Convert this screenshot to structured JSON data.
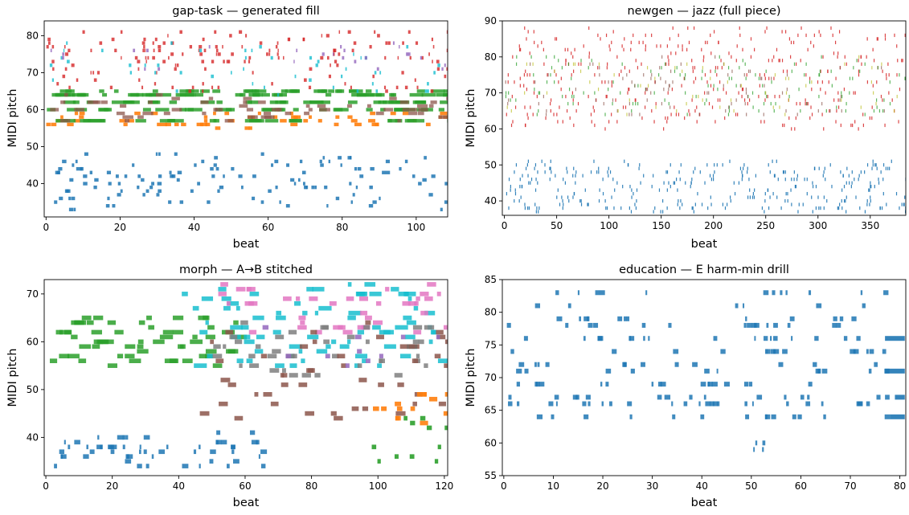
{
  "colors": {
    "blue": "#1f77b4",
    "orange": "#ff7f0e",
    "green": "#2ca02c",
    "red": "#d62728",
    "purple": "#9467bd",
    "brown": "#8c564b",
    "pink": "#e377c2",
    "gray": "#7f7f7f",
    "olive": "#bcbd22",
    "cyan": "#17becf"
  },
  "chart_data": [
    {
      "type": "scatter",
      "subtype": "piano-roll",
      "title": "gap-task — generated fill",
      "xlabel": "beat",
      "ylabel": "MIDI pitch",
      "xlim": [
        -0.5,
        108.5
      ],
      "ylim": [
        31,
        84
      ],
      "xticks": [
        0,
        20,
        40,
        60,
        80,
        100
      ],
      "yticks": [
        40,
        50,
        60,
        70,
        80
      ],
      "grid": false,
      "legend": "none",
      "seed": 11,
      "tracks": [
        {
          "color": "blue",
          "count": 130,
          "pitch_range": [
            33,
            48
          ],
          "dur": [
            0.5,
            1.2
          ],
          "opacity": 0.85
        },
        {
          "color": "orange",
          "count": 60,
          "pitch_range": [
            55,
            59
          ],
          "dur": [
            0.8,
            2.0
          ],
          "opacity": 0.9
        },
        {
          "color": "green",
          "count": 180,
          "pitch_range": [
            57,
            65
          ],
          "dur": [
            1.0,
            4.0
          ],
          "opacity": 0.85,
          "lanes": [
            57,
            60,
            62,
            64,
            65
          ]
        },
        {
          "color": "brown",
          "count": 60,
          "pitch_range": [
            57,
            64
          ],
          "dur": [
            1.0,
            3.0
          ],
          "opacity": 0.75
        },
        {
          "color": "red",
          "count": 160,
          "pitch_range": [
            65,
            81
          ],
          "dur": [
            0.3,
            0.9
          ],
          "opacity": 0.8
        },
        {
          "color": "cyan",
          "count": 50,
          "pitch_range": [
            64,
            78
          ],
          "dur": [
            0.3,
            0.8
          ],
          "opacity": 0.8
        },
        {
          "color": "purple",
          "count": 25,
          "pitch_range": [
            70,
            79
          ],
          "dur": [
            0.3,
            0.7
          ],
          "opacity": 0.8
        }
      ]
    },
    {
      "type": "scatter",
      "subtype": "piano-roll",
      "title": "newgen — jazz (full piece)",
      "xlabel": "beat",
      "ylabel": "MIDI pitch",
      "xlim": [
        -2,
        384
      ],
      "ylim": [
        36,
        90
      ],
      "xticks": [
        0,
        50,
        100,
        150,
        200,
        250,
        300,
        350
      ],
      "yticks": [
        40,
        50,
        60,
        70,
        80,
        90
      ],
      "grid": false,
      "legend": "none",
      "seed": 23,
      "tracks": [
        {
          "color": "blue",
          "count": 330,
          "pitch_range": [
            37,
            51
          ],
          "dur": [
            0.3,
            0.6
          ],
          "opacity": 0.9
        },
        {
          "color": "red",
          "count": 380,
          "pitch_range": [
            60,
            88
          ],
          "dur": [
            0.3,
            0.6
          ],
          "opacity": 0.85
        },
        {
          "color": "green",
          "count": 140,
          "pitch_range": [
            64,
            80
          ],
          "dur": [
            0.3,
            0.6
          ],
          "opacity": 0.75
        },
        {
          "color": "brown",
          "count": 90,
          "pitch_range": [
            64,
            80
          ],
          "dur": [
            0.3,
            0.6
          ],
          "opacity": 0.7
        },
        {
          "color": "olive",
          "count": 60,
          "pitch_range": [
            64,
            80
          ],
          "dur": [
            0.3,
            0.6
          ],
          "opacity": 0.7
        }
      ]
    },
    {
      "type": "scatter",
      "subtype": "piano-roll",
      "title": "morph — A→B stitched",
      "xlabel": "beat",
      "ylabel": "MIDI pitch",
      "xlim": [
        -0.5,
        121
      ],
      "ylim": [
        32,
        73
      ],
      "xticks": [
        0,
        20,
        40,
        60,
        80,
        100,
        120
      ],
      "yticks": [
        40,
        50,
        60,
        70
      ],
      "grid": false,
      "legend": "none",
      "seed": 37,
      "tracks": [
        {
          "color": "blue",
          "count": 55,
          "pitch_range": [
            34,
            41
          ],
          "dur": [
            0.5,
            2.0
          ],
          "opacity": 0.85,
          "xrange": [
            0,
            65
          ]
        },
        {
          "color": "green",
          "count": 60,
          "pitch_range": [
            55,
            65
          ],
          "dur": [
            1.5,
            4.0
          ],
          "opacity": 0.85,
          "xrange": [
            0,
            58
          ]
        },
        {
          "color": "cyan",
          "count": 80,
          "pitch_range": [
            55,
            72
          ],
          "dur": [
            1.0,
            4.0
          ],
          "opacity": 0.85,
          "xrange": [
            40,
            121
          ]
        },
        {
          "color": "pink",
          "count": 40,
          "pitch_range": [
            61,
            72
          ],
          "dur": [
            1.0,
            3.0
          ],
          "opacity": 0.85,
          "xrange": [
            50,
            121
          ]
        },
        {
          "color": "gray",
          "count": 40,
          "pitch_range": [
            52,
            64
          ],
          "dur": [
            1.0,
            3.0
          ],
          "opacity": 0.85,
          "xrange": [
            50,
            121
          ]
        },
        {
          "color": "brown",
          "count": 45,
          "pitch_range": [
            43,
            64
          ],
          "dur": [
            1.0,
            3.0
          ],
          "opacity": 0.85,
          "xrange": [
            44,
            121
          ]
        },
        {
          "color": "orange",
          "count": 14,
          "pitch_range": [
            43,
            50
          ],
          "dur": [
            1.0,
            2.5
          ],
          "opacity": 0.9,
          "xrange": [
            95,
            121
          ]
        },
        {
          "color": "green",
          "count": 12,
          "pitch_range": [
            35,
            46
          ],
          "dur": [
            1.0,
            2.0
          ],
          "opacity": 0.9,
          "xrange": [
            95,
            121
          ]
        },
        {
          "color": "purple",
          "count": 10,
          "pitch_range": [
            55,
            67
          ],
          "dur": [
            1.0,
            2.0
          ],
          "opacity": 0.85,
          "xrange": [
            60,
            121
          ]
        }
      ]
    },
    {
      "type": "scatter",
      "subtype": "piano-roll",
      "title": "education — E harm-min drill",
      "xlabel": "beat",
      "ylabel": "MIDI pitch",
      "xlim": [
        -0.3,
        81.2
      ],
      "ylim": [
        55,
        85
      ],
      "xticks": [
        0,
        10,
        20,
        30,
        40,
        50,
        60,
        70,
        80
      ],
      "yticks": [
        55,
        60,
        65,
        70,
        75,
        80,
        85
      ],
      "grid": false,
      "legend": "none",
      "seed": 53,
      "tracks": [
        {
          "color": "blue",
          "count": 170,
          "pitch_range": [
            63,
            81
          ],
          "dur": [
            0.3,
            1.2
          ],
          "opacity": 0.85,
          "xrange": [
            0,
            77
          ],
          "lanes": [
            64,
            66,
            67,
            69,
            71,
            72,
            74,
            76,
            78,
            79,
            81,
            83
          ]
        },
        {
          "color": "blue",
          "count": 4,
          "pitch_range": [
            57,
            60
          ],
          "dur": [
            0.3,
            0.6
          ],
          "opacity": 0.85,
          "xrange": [
            50,
            56
          ]
        }
      ],
      "sustained": [
        {
          "color": "blue",
          "pitch": 76,
          "x": [
            77,
            81
          ]
        },
        {
          "color": "blue",
          "pitch": 71,
          "x": [
            77,
            81
          ]
        },
        {
          "color": "blue",
          "pitch": 67,
          "x": [
            79,
            81
          ]
        },
        {
          "color": "blue",
          "pitch": 64,
          "x": [
            78,
            81
          ]
        }
      ]
    }
  ]
}
